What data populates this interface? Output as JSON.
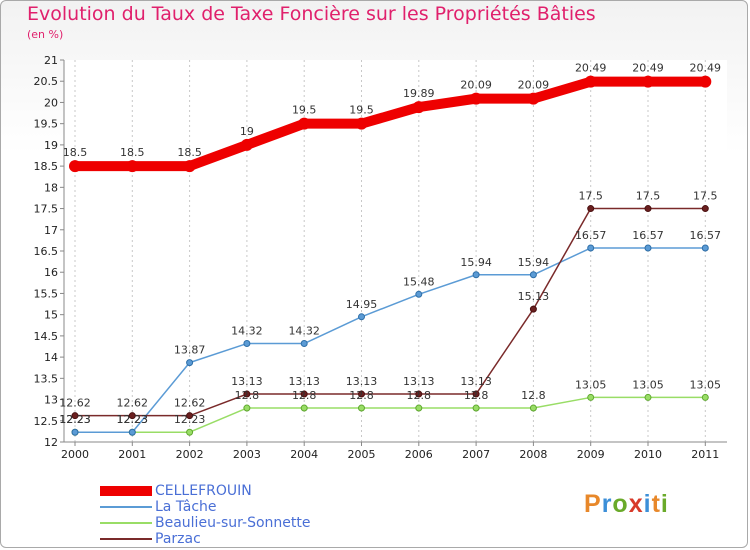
{
  "header": {
    "title": "Evolution du Taux de Taxe Foncière sur les Propriétés Bâties",
    "unit": "(en %)"
  },
  "brand": {
    "letters": [
      "P",
      "r",
      "o",
      "x",
      "i",
      "t",
      "i"
    ],
    "colors": [
      "#e8882a",
      "#3c8fd8",
      "#6aaa2a",
      "#d83a2a",
      "#3c8fd8",
      "#e8882a",
      "#6aaa2a"
    ]
  },
  "chart_data": {
    "type": "line",
    "title": "Evolution du Taux de Taxe Foncière sur les Propriétés Bâties",
    "ylabel": "(en %)",
    "xlabel": "",
    "categories": [
      "2000",
      "2001",
      "2002",
      "2003",
      "2004",
      "2005",
      "2006",
      "2007",
      "2008",
      "2009",
      "2010",
      "2011"
    ],
    "ylim": [
      12,
      21
    ],
    "yticks": [
      "12",
      "12.5",
      "13",
      "13.5",
      "14",
      "14.5",
      "15",
      "15.5",
      "16",
      "16.5",
      "17",
      "17.5",
      "18",
      "18.5",
      "19",
      "19.5",
      "20",
      "20.5",
      "21"
    ],
    "grid": "vertical dashed",
    "legend_position": "bottom-left",
    "series": [
      {
        "name": "CELLEFROUIN",
        "color": "#ee0000",
        "values": [
          18.5,
          18.5,
          18.5,
          19,
          19.5,
          19.5,
          19.89,
          20.09,
          20.09,
          20.49,
          20.49,
          20.49
        ],
        "labels": [
          "18.5",
          "18.5",
          "18.5",
          "19",
          "19.5",
          "19.5",
          "19.89",
          "20.09",
          "20.09",
          "20.49",
          "20.49",
          "20.49"
        ]
      },
      {
        "name": "La Tâche",
        "color": "#5b9bd5",
        "values": [
          12.23,
          12.23,
          13.87,
          14.32,
          14.32,
          14.95,
          15.48,
          15.94,
          15.94,
          16.57,
          16.57,
          16.57
        ],
        "labels": [
          "12.23",
          "12.23",
          "13.87",
          "14.32",
          "14.32",
          "14.95",
          "15.48",
          "15.94",
          "15.94",
          "16.57",
          "16.57",
          "16.57"
        ]
      },
      {
        "name": "Beaulieu-sur-Sonnette",
        "color": "#99dd66",
        "values": [
          12.23,
          12.23,
          12.23,
          12.8,
          12.8,
          12.8,
          12.8,
          12.8,
          12.8,
          13.05,
          13.05,
          13.05
        ],
        "labels": [
          "12.23",
          "12.23",
          "12.23",
          "12.8",
          "12.8",
          "12.8",
          "12.8",
          "12.8",
          "12.8",
          "13.05",
          "13.05",
          "13.05"
        ]
      },
      {
        "name": "Parzac",
        "color": "#7a2a2a",
        "values": [
          12.62,
          12.62,
          12.62,
          13.13,
          13.13,
          13.13,
          13.13,
          13.13,
          15.13,
          17.5,
          17.5,
          17.5
        ],
        "labels": [
          "12.62",
          "12.62",
          "12.62",
          "13.13",
          "13.13",
          "13.13",
          "13.13",
          "13.13",
          "15.13",
          "17.5",
          "17.5",
          "17.5"
        ]
      }
    ]
  }
}
